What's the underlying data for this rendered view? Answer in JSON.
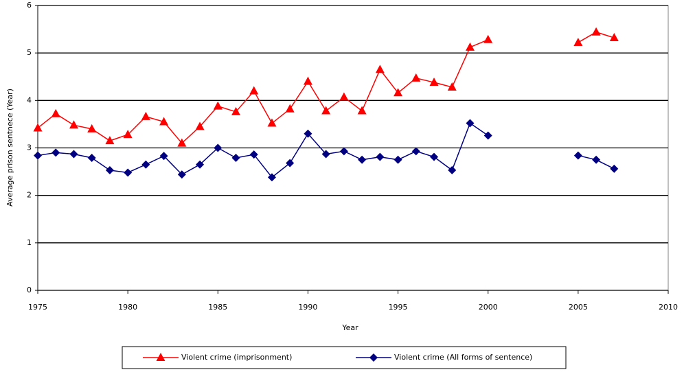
{
  "chart_data": {
    "type": "line",
    "xlabel": "Year",
    "ylabel": "Average prison sentnece (Year)",
    "x": [
      1975,
      1976,
      1977,
      1978,
      1979,
      1980,
      1981,
      1982,
      1983,
      1984,
      1985,
      1986,
      1987,
      1988,
      1989,
      1990,
      1991,
      1992,
      1993,
      1994,
      1995,
      1996,
      1997,
      1998,
      1999,
      2000,
      2001,
      2002,
      2003,
      2004,
      2005,
      2006,
      2007
    ],
    "series": [
      {
        "name": "Violent crime (imprisonment)",
        "color": "#ff0000",
        "marker": "triangle",
        "values": [
          3.42,
          3.72,
          3.48,
          3.4,
          3.15,
          3.28,
          3.66,
          3.55,
          3.1,
          3.45,
          3.88,
          3.76,
          4.2,
          3.52,
          3.82,
          4.4,
          3.78,
          4.07,
          3.78,
          4.65,
          4.16,
          4.47,
          4.38,
          4.28,
          5.12,
          5.28,
          null,
          null,
          null,
          null,
          5.22,
          5.44,
          5.32
        ]
      },
      {
        "name": "Violent crime (All forms of sentence)",
        "color": "#000080",
        "marker": "diamond",
        "values": [
          2.84,
          2.9,
          2.87,
          2.79,
          2.53,
          2.48,
          2.65,
          2.83,
          2.44,
          2.65,
          3.0,
          2.79,
          2.86,
          2.38,
          2.68,
          3.3,
          2.87,
          2.93,
          2.75,
          2.81,
          2.75,
          2.93,
          2.81,
          2.53,
          3.52,
          3.26,
          null,
          null,
          null,
          null,
          2.84,
          2.75,
          2.56
        ]
      }
    ],
    "xlim": [
      1975,
      2010
    ],
    "xticks": [
      1975,
      1980,
      1985,
      1990,
      1995,
      2000,
      2005,
      2010
    ],
    "ylim": [
      0,
      6
    ],
    "yticks": [
      0,
      1,
      2,
      3,
      4,
      5,
      6
    ],
    "grid": true,
    "legend": "bottom"
  }
}
